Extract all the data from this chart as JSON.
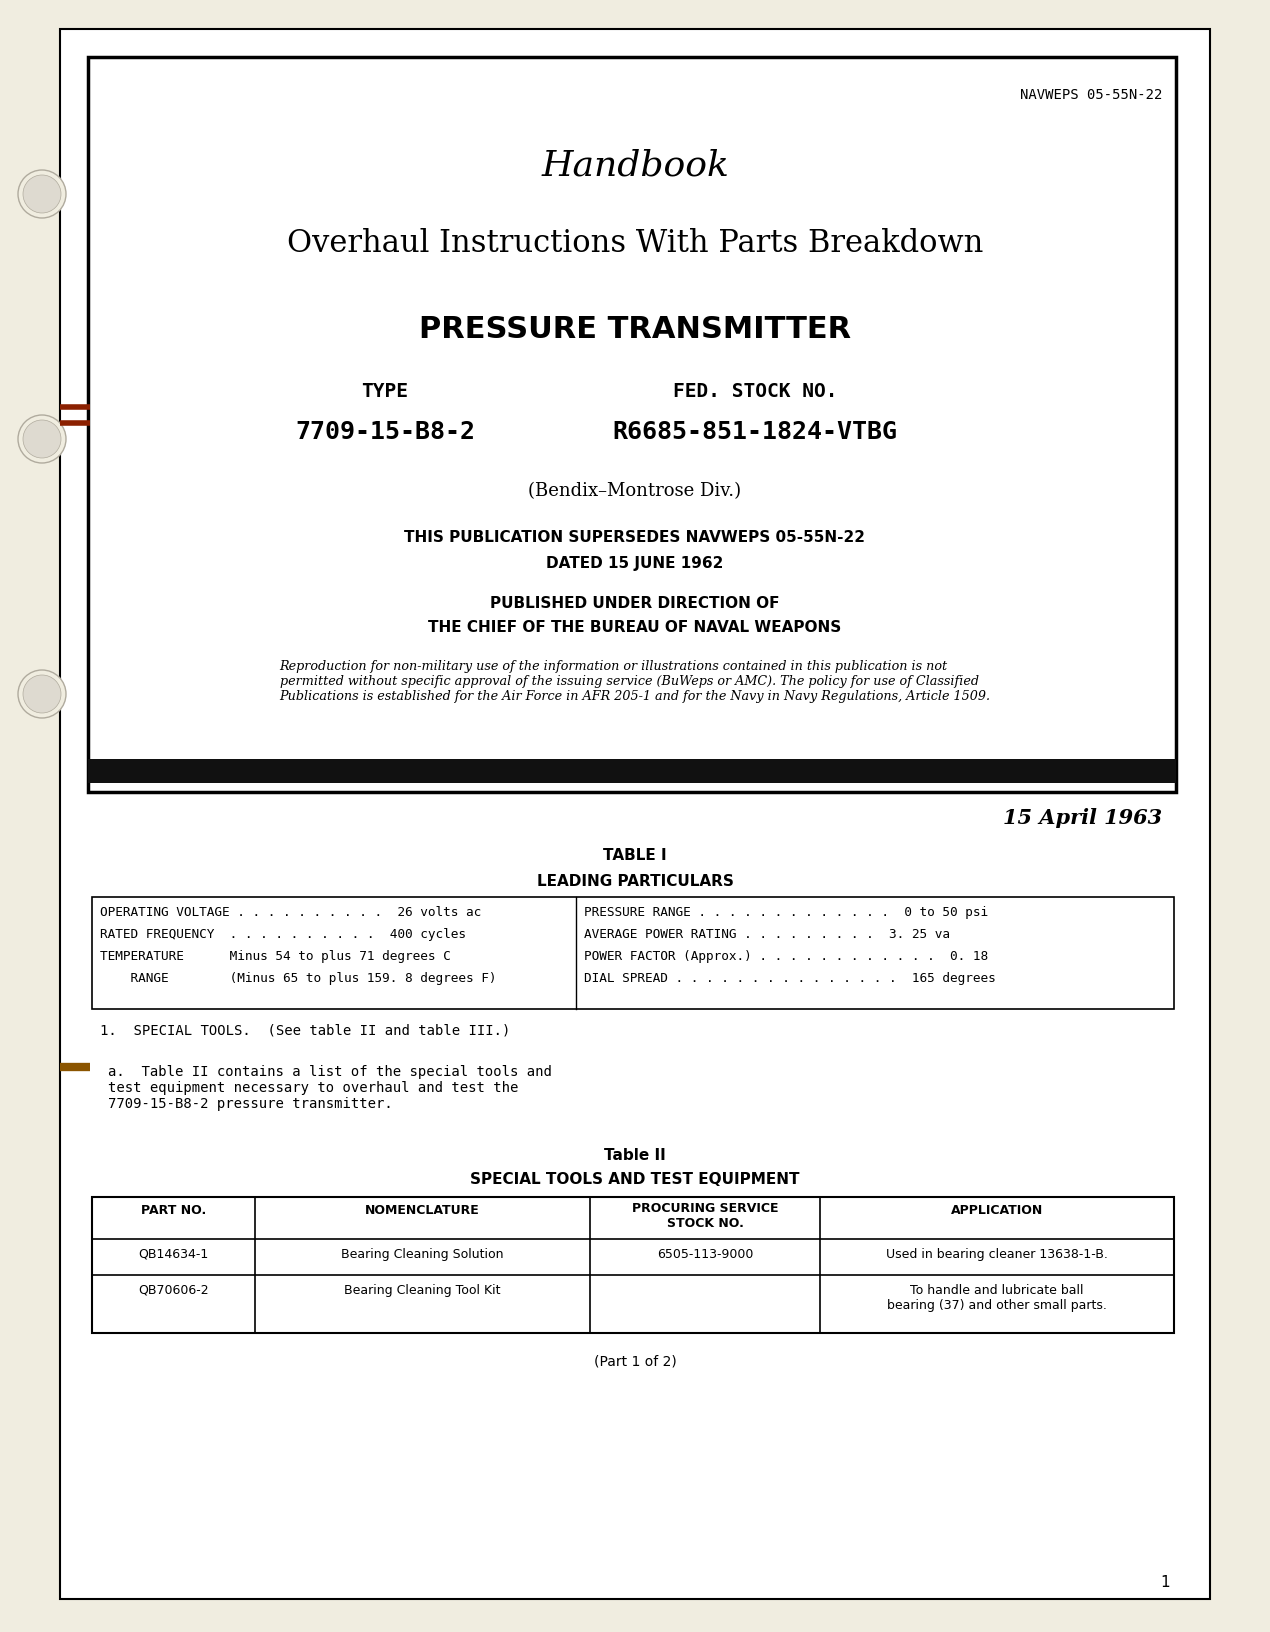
{
  "bg_color": "#f0ede0",
  "page_bg": "#ffffff",
  "navweps": "NAVWEPS 05-55N-22",
  "title1": "Handbook",
  "title2": "Overhaul Instructions With Parts Breakdown",
  "title3": "PRESSURE TRANSMITTER",
  "type_label": "TYPE",
  "type_value": "7709-15-B8-2",
  "stock_label": "FED. STOCK NO.",
  "stock_value": "R6685-851-1824-VTBG",
  "bendix": "(Bendix–Montrose Div.)",
  "supersedes1": "THIS PUBLICATION SUPERSEDES NAVWEPS 05-55N-22",
  "supersedes2": "DATED 15 JUNE 1962",
  "published1": "PUBLISHED UNDER DIRECTION OF",
  "published2": "THE CHIEF OF THE BUREAU OF NAVAL WEAPONS",
  "reproduction": "Reproduction for non-military use of the information or illustrations contained in this publication is not\npermitted without specific approval of the issuing service (BuWeps or AMC). The policy for use of Classified\nPublications is established for the Air Force in AFR 205-1 and for the Navy in Navy Regulations, Article 1509.",
  "date": "15 April 1963",
  "table1_title": "TABLE I",
  "table1_sub": "LEADING PARTICULARS",
  "lp_left1": "OPERATING VOLTAGE . . . . . . . . . .  26 volts ac",
  "lp_left2": "RATED FREQUENCY  . . . . . . . . . .  400 cycles",
  "lp_left3": "TEMPERATURE      Minus 54 to plus 71 degrees C",
  "lp_left4": "    RANGE        (Minus 65 to plus 159. 8 degrees F)",
  "lp_right1": "PRESSURE RANGE . . . . . . . . . . . . .  0 to 50 psi",
  "lp_right2": "AVERAGE POWER RATING . . . . . . . . .  3. 25 va",
  "lp_right3": "POWER FACTOR (Approx.) . . . . . . . . . . . .  0. 18",
  "lp_right4": "DIAL SPREAD . . . . . . . . . . . . . . .  165 degrees",
  "special_tools": "1.  SPECIAL TOOLS.  (See table II and table III.)",
  "para_a": "a.  Table II contains a list of the special tools and\ntest equipment necessary to overhaul and test the\n7709-15-B8-2 pressure transmitter.",
  "table2_title": "Table II",
  "table2_sub": "SPECIAL TOOLS AND TEST EQUIPMENT",
  "col1": "PART NO.",
  "col2": "NOMENCLATURE",
  "col3": "PROCURING SERVICE\nSTOCK NO.",
  "col4": "APPLICATION",
  "row1_col1": "QB14634-1",
  "row1_col2": "Bearing Cleaning Solution",
  "row1_col3": "6505-113-9000",
  "row1_col4": "Used in bearing cleaner 13638-1-B.",
  "row2_col1": "QB70606-2",
  "row2_col2": "Bearing Cleaning Tool Kit",
  "row2_col3": "",
  "row2_col4": "To handle and lubricate ball\nbearing (37) and other small parts.",
  "part_note": "(Part 1 of 2)",
  "page_num": "1"
}
